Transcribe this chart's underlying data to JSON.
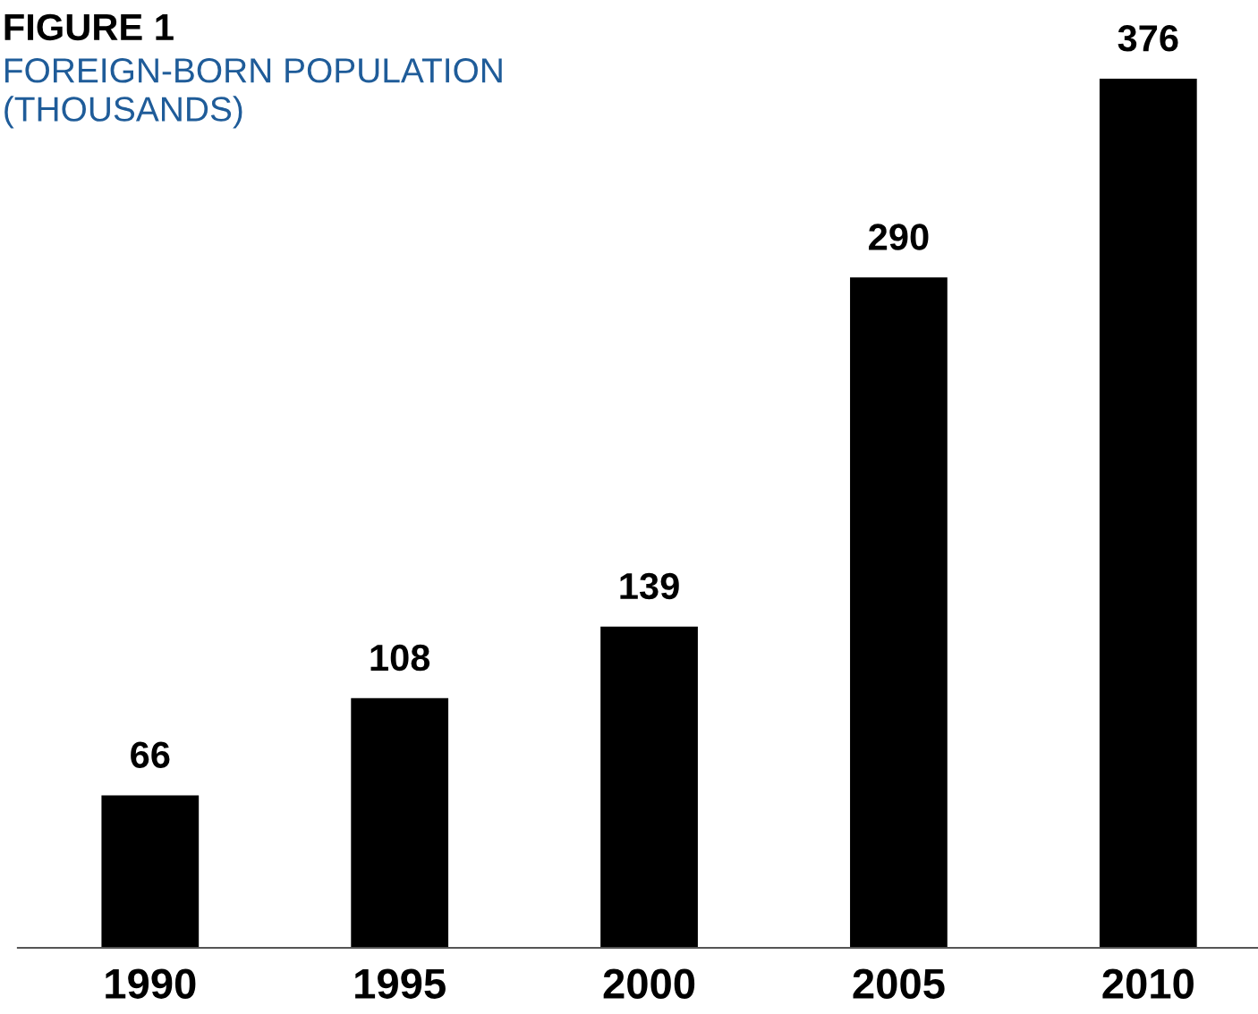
{
  "chart_data": {
    "type": "bar",
    "title": "FIGURE 1",
    "subtitle": "FOREIGN-BORN POPULATION\n(THOUSANDS)",
    "categories": [
      "1990",
      "1995",
      "2000",
      "2005",
      "2010"
    ],
    "values": [
      66,
      108,
      139,
      290,
      376
    ],
    "color": "#000000",
    "data_labels": true,
    "grid": false,
    "legend": false
  }
}
